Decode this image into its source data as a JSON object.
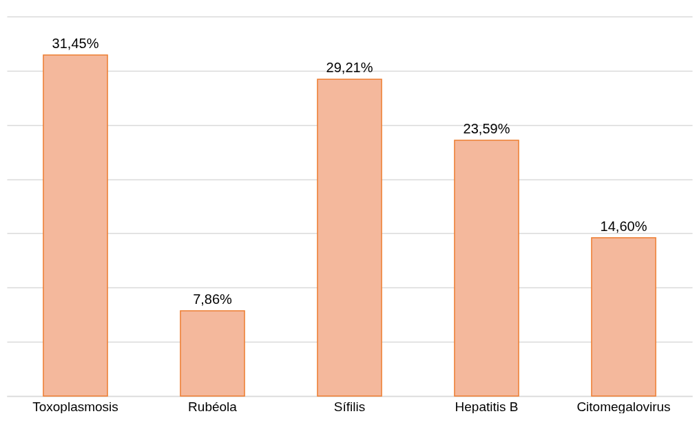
{
  "chart_data": {
    "type": "bar",
    "categories": [
      "Toxoplasmosis",
      "Rubéola",
      "Sífilis",
      "Hepatitis B",
      "Citomegalovirus"
    ],
    "values": [
      31.45,
      7.86,
      29.21,
      23.59,
      14.6
    ],
    "value_labels": [
      "31,45%",
      "7,86%",
      "29,21%",
      "23,59%",
      "14,60%"
    ],
    "color": "#f4b89c",
    "ylim": [
      0,
      35
    ],
    "yticks": [
      0,
      {
        "value": 5,
        "label": null
      },
      {
        "value": 10,
        "label": null
      },
      {
        "value": 15,
        "label": null
      },
      {
        "value": 20,
        "label": null
      },
      {
        "value": 25,
        "label": null
      },
      {
        "value": 30,
        "label": null
      },
      {
        "value": 35,
        "label": null
      }
    ],
    "tick_labels": "x",
    "grid": "y"
  }
}
